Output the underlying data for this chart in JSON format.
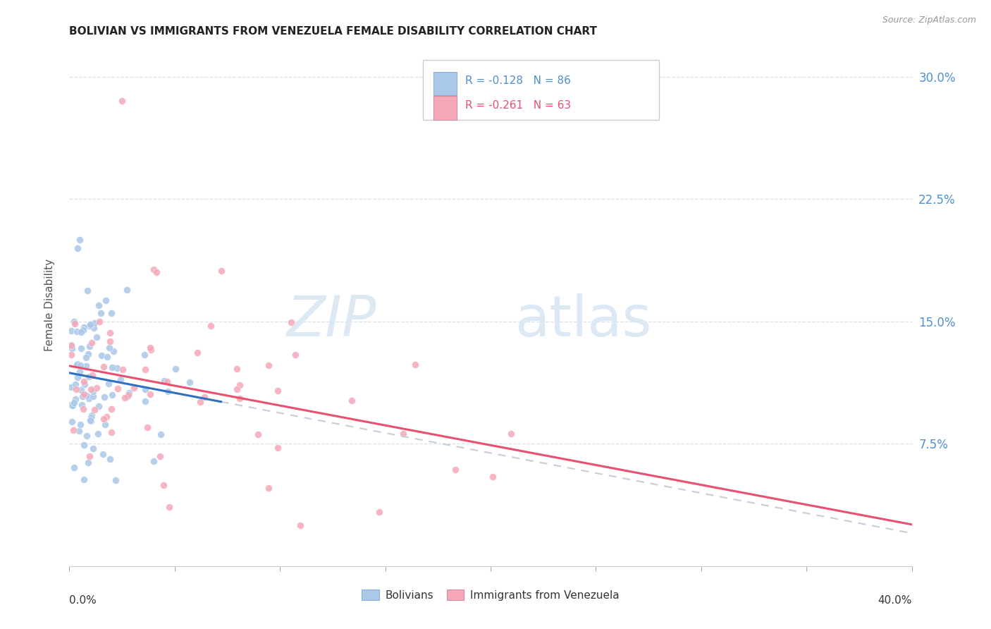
{
  "title": "BOLIVIAN VS IMMIGRANTS FROM VENEZUELA FEMALE DISABILITY CORRELATION CHART",
  "source": "Source: ZipAtlas.com",
  "ylabel": "Female Disability",
  "right_ytick_labels": [
    "7.5%",
    "15.0%",
    "22.5%",
    "30.0%"
  ],
  "right_ytick_vals": [
    0.075,
    0.15,
    0.225,
    0.3
  ],
  "xlim": [
    0.0,
    0.4
  ],
  "ylim": [
    0.0,
    0.32
  ],
  "bolivian_color": "#aac8e8",
  "venezuela_color": "#f4a8b8",
  "trendline_bolivian_color": "#3070c0",
  "trendline_venezuela_color": "#e85070",
  "trendline_ext_color": "#c8d0dc",
  "grid_color": "#d8e0ec",
  "axis_label_color": "#5090d0",
  "title_color": "#222222",
  "source_color": "#999999",
  "legend_r_bol": "R = -0.128",
  "legend_n_bol": "N = 86",
  "legend_r_ven": "R = -0.261",
  "legend_n_ven": "N = 63",
  "background_color": "#ffffff",
  "watermark_zip_color": "#dce8f4",
  "watermark_atlas_color": "#dce8f4"
}
